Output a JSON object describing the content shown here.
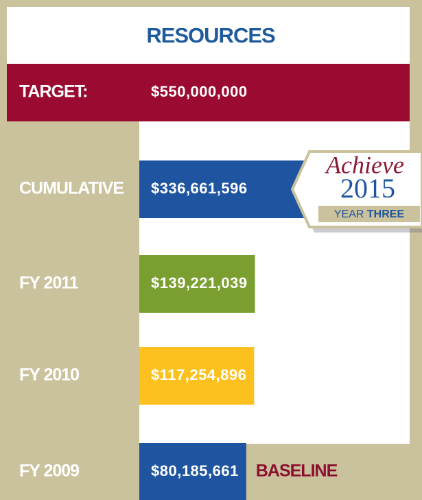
{
  "chart_data": {
    "type": "bar",
    "orientation": "horizontal",
    "title": "RESOURCES",
    "categories": [
      "TARGET:",
      "CUMULATIVE",
      "FY 2011",
      "FY 2010",
      "FY 2009"
    ],
    "values": [
      550000000,
      336661596,
      139221039,
      117254896,
      80185661
    ],
    "value_labels": [
      "$550,000,000",
      "$336,661,596",
      "$139,221,039",
      "$117,254,896",
      "$80,185,661"
    ],
    "colors": [
      "#9b0a30",
      "#1f55a0",
      "#7a9e2f",
      "#fcc11f",
      "#1f55a0"
    ],
    "annotation": "BASELINE",
    "badge": {
      "script": "Achieve",
      "year": "2015",
      "line": "YEAR",
      "line_bold": "THREE"
    }
  }
}
